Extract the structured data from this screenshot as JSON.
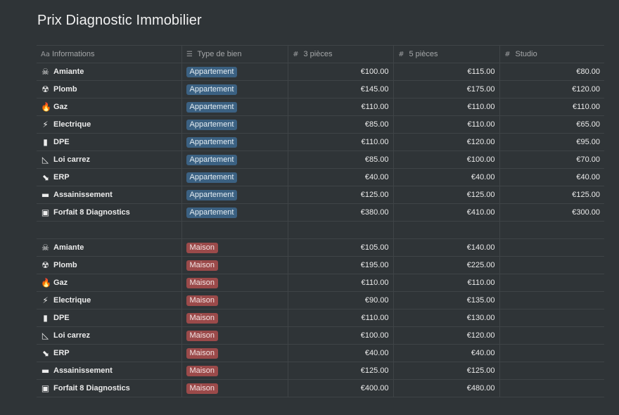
{
  "title": "Prix Diagnostic Immobilier",
  "columns": [
    {
      "label": "Informations",
      "icon": "text-type-icon",
      "glyph": "Aa"
    },
    {
      "label": "Type de bien",
      "icon": "list-icon",
      "glyph": "☰"
    },
    {
      "label": "3 pièces",
      "icon": "number-hash-icon",
      "glyph": "#"
    },
    {
      "label": "5 pièces",
      "icon": "number-hash-icon",
      "glyph": "#"
    },
    {
      "label": "Studio",
      "icon": "number-hash-icon",
      "glyph": "#"
    }
  ],
  "colors": {
    "appartement_tag": "#3b6182",
    "maison_tag": "#9b4a4a",
    "background": "#2f3437"
  },
  "rows_appartement": [
    {
      "icon": "skull-crossbones-icon",
      "emoji": "☠",
      "name": "Amiante",
      "type": "Appartement",
      "p3": "€100.00",
      "p5": "€115.00",
      "studio": "€80.00"
    },
    {
      "icon": "radioactive-icon",
      "emoji": "☢",
      "name": "Plomb",
      "type": "Appartement",
      "p3": "€145.00",
      "p5": "€175.00",
      "studio": "€120.00"
    },
    {
      "icon": "fire-icon",
      "emoji": "🔥",
      "name": "Gaz",
      "type": "Appartement",
      "p3": "€110.00",
      "p5": "€110.00",
      "studio": "€110.00"
    },
    {
      "icon": "lightning-icon",
      "emoji": "⚡",
      "name": "Electrique",
      "type": "Appartement",
      "p3": "€85.00",
      "p5": "€110.00",
      "studio": "€65.00"
    },
    {
      "icon": "battery-icon",
      "emoji": "▮",
      "name": "DPE",
      "type": "Appartement",
      "p3": "€110.00",
      "p5": "€120.00",
      "studio": "€95.00"
    },
    {
      "icon": "triangular-ruler-icon",
      "emoji": "◺",
      "name": "Loi carrez",
      "type": "Appartement",
      "p3": "€85.00",
      "p5": "€100.00",
      "studio": "€70.00"
    },
    {
      "icon": "boot-icon",
      "emoji": "⬊",
      "name": "ERP",
      "type": "Appartement",
      "p3": "€40.00",
      "p5": "€40.00",
      "studio": "€40.00"
    },
    {
      "icon": "puddle-icon",
      "emoji": "▬",
      "name": "Assainissement",
      "type": "Appartement",
      "p3": "€125.00",
      "p5": "€125.00",
      "studio": "€125.00"
    },
    {
      "icon": "package-icon",
      "emoji": "▣",
      "name": "Forfait 8 Diagnostics",
      "type": "Appartement",
      "p3": "€380.00",
      "p5": "€410.00",
      "studio": "€300.00"
    }
  ],
  "rows_maison": [
    {
      "icon": "skull-crossbones-icon",
      "emoji": "☠",
      "name": "Amiante",
      "type": "Maison",
      "p3": "€105.00",
      "p5": "€140.00",
      "studio": ""
    },
    {
      "icon": "radioactive-icon",
      "emoji": "☢",
      "name": "Plomb",
      "type": "Maison",
      "p3": "€195.00",
      "p5": "€225.00",
      "studio": ""
    },
    {
      "icon": "fire-icon",
      "emoji": "🔥",
      "name": "Gaz",
      "type": "Maison",
      "p3": "€110.00",
      "p5": "€110.00",
      "studio": ""
    },
    {
      "icon": "lightning-icon",
      "emoji": "⚡",
      "name": "Electrique",
      "type": "Maison",
      "p3": "€90.00",
      "p5": "€135.00",
      "studio": ""
    },
    {
      "icon": "battery-icon",
      "emoji": "▮",
      "name": "DPE",
      "type": "Maison",
      "p3": "€110.00",
      "p5": "€130.00",
      "studio": ""
    },
    {
      "icon": "triangular-ruler-icon",
      "emoji": "◺",
      "name": "Loi carrez",
      "type": "Maison",
      "p3": "€100.00",
      "p5": "€120.00",
      "studio": ""
    },
    {
      "icon": "boot-icon",
      "emoji": "⬊",
      "name": "ERP",
      "type": "Maison",
      "p3": "€40.00",
      "p5": "€40.00",
      "studio": ""
    },
    {
      "icon": "puddle-icon",
      "emoji": "▬",
      "name": "Assainissement",
      "type": "Maison",
      "p3": "€125.00",
      "p5": "€125.00",
      "studio": ""
    },
    {
      "icon": "package-icon",
      "emoji": "▣",
      "name": "Forfait 8 Diagnostics",
      "type": "Maison",
      "p3": "€400.00",
      "p5": "€480.00",
      "studio": ""
    }
  ]
}
